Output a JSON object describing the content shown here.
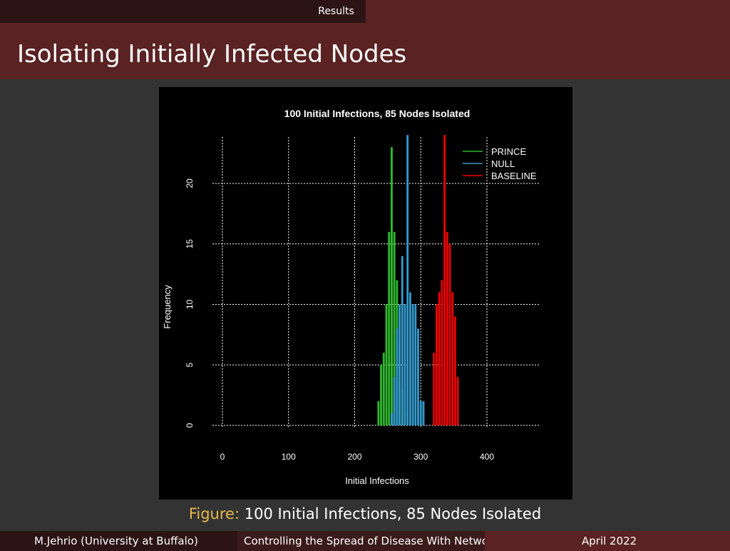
{
  "nav": {
    "section": "Results"
  },
  "slide": {
    "title": "Isolating Initially Infected Nodes"
  },
  "caption": {
    "label": "Figure:",
    "text": "100 Initial Infections, 85 Nodes Isolated"
  },
  "footer": {
    "author": "M.Jehrio  (University at Buffalo)",
    "talk": "Controlling the Spread of Disease With Netwo",
    "date": "April 2022"
  },
  "colors": {
    "bar": "#5a2222",
    "dark": "#2c1414",
    "caption_label": "#e8b84a",
    "prince": "#2eb82e",
    "null": "#3399cc",
    "baseline": "#ee0000"
  },
  "chart_data": {
    "type": "bar",
    "title": "100  Initial Infections,  85 Nodes Isolated",
    "xlabel": "Initial Infections",
    "ylabel": "Frequency",
    "xlim": [
      0,
      480
    ],
    "ylim": [
      0,
      24
    ],
    "xticks": [
      0,
      100,
      200,
      300,
      400
    ],
    "yticks": [
      0,
      5,
      10,
      15,
      20
    ],
    "grid": true,
    "legend_position": "top-right",
    "bin_width": 4,
    "series": [
      {
        "name": "PRINCE",
        "color": "#2eb82e",
        "x": [
          236,
          240,
          244,
          248,
          252,
          256,
          260,
          264,
          268,
          272,
          276
        ],
        "values": [
          2,
          5,
          6,
          10,
          16,
          23,
          16,
          12,
          7,
          3,
          1
        ]
      },
      {
        "name": "NULL",
        "color": "#3399cc",
        "x": [
          256,
          260,
          264,
          268,
          272,
          276,
          280,
          284,
          288,
          292,
          296,
          300,
          304
        ],
        "values": [
          1,
          4,
          8,
          10,
          14,
          10,
          24,
          11,
          10,
          10,
          8,
          2,
          2
        ]
      },
      {
        "name": "BASELINE",
        "color": "#ee0000",
        "x": [
          320,
          324,
          328,
          332,
          336,
          340,
          344,
          348,
          352,
          356
        ],
        "values": [
          6,
          10,
          11,
          12,
          24,
          16,
          15,
          11,
          9,
          4
        ]
      }
    ]
  }
}
